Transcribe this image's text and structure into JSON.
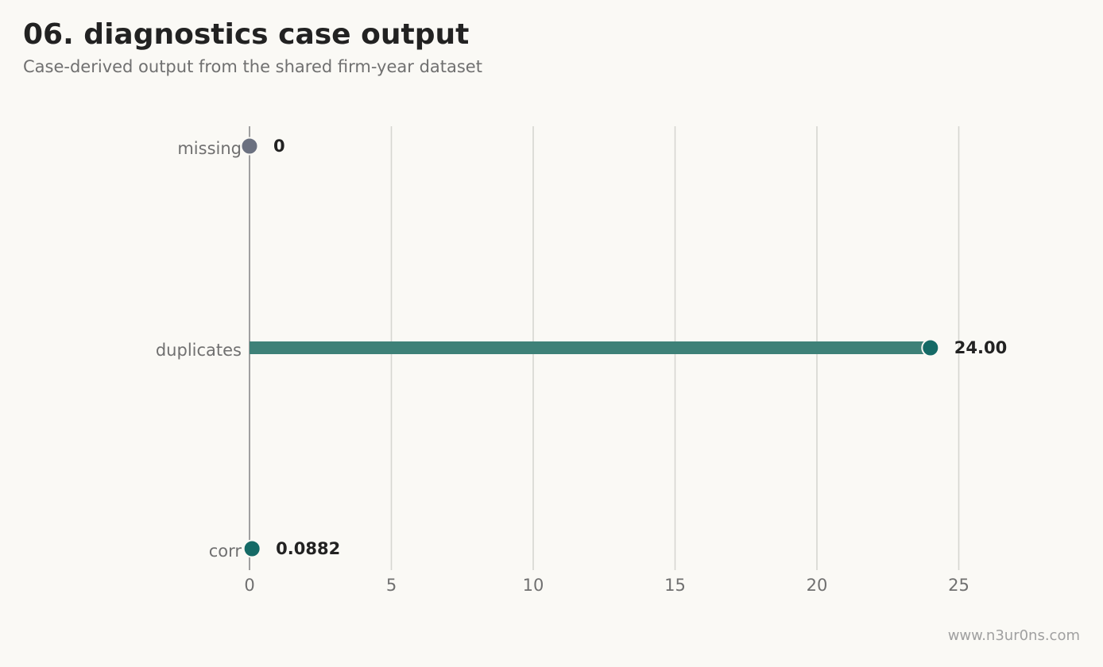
{
  "title": "06. diagnostics case output",
  "subtitle": "Case-derived output from the shared firm-year dataset",
  "watermark": "www.n3ur0ns.com",
  "colors": {
    "background": "#faf9f5",
    "grid": "#d6d6d1",
    "axis": "#8a8a8a",
    "tick_text": "#707070",
    "value_text": "#222222",
    "bar": "#3e8178",
    "dot_positive": "#156a66",
    "dot_zero": "#6b7180"
  },
  "chart_data": {
    "type": "bar",
    "orientation": "horizontal",
    "style": "lollipop",
    "categories": [
      "missing",
      "duplicates",
      "corr"
    ],
    "values": [
      0,
      24,
      0.0882
    ],
    "value_labels": [
      "0",
      "24.00",
      "0.0882"
    ],
    "xlim": [
      0,
      28.5
    ],
    "xticks": [
      0,
      5,
      10,
      15,
      20,
      25
    ],
    "xlabel": "",
    "ylabel": "",
    "grid": "vertical",
    "legend": "none"
  }
}
